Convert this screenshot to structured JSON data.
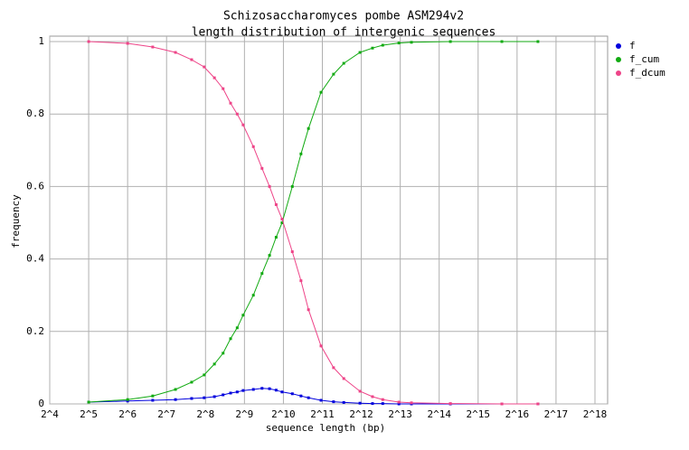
{
  "chart_data": {
    "type": "line",
    "title": "Schizosaccharomyces pombe ASM294v2",
    "subtitle": "length distribution of intergenic sequences",
    "x_label": "sequence length (bp)",
    "y_label": "frequency",
    "x_log_base": 2,
    "xlim": [
      16,
      262144
    ],
    "xticks": [
      {
        "value": 16,
        "label": "2^4"
      },
      {
        "value": 32,
        "label": "2^5"
      },
      {
        "value": 64,
        "label": "2^6"
      },
      {
        "value": 128,
        "label": "2^7"
      },
      {
        "value": 256,
        "label": "2^8"
      },
      {
        "value": 512,
        "label": "2^9"
      },
      {
        "value": 1024,
        "label": "2^10"
      },
      {
        "value": 2048,
        "label": "2^11"
      },
      {
        "value": 4096,
        "label": "2^12"
      },
      {
        "value": 8192,
        "label": "2^13"
      },
      {
        "value": 16384,
        "label": "2^14"
      },
      {
        "value": 32768,
        "label": "2^15"
      },
      {
        "value": 65536,
        "label": "2^16"
      },
      {
        "value": 131072,
        "label": "2^17"
      },
      {
        "value": 262144,
        "label": "2^18"
      }
    ],
    "ylim": [
      0,
      1
    ],
    "yticks": [
      0,
      0.2,
      0.4,
      0.6,
      0.8,
      1
    ],
    "grid": true,
    "legend": "right",
    "x": [
      32,
      64,
      100,
      150,
      200,
      250,
      300,
      350,
      400,
      450,
      500,
      600,
      700,
      800,
      900,
      1000,
      1200,
      1400,
      1600,
      2000,
      2500,
      3000,
      4000,
      5000,
      6000,
      8000,
      10000,
      20000,
      50000,
      95000
    ],
    "series": [
      {
        "name": "f",
        "color": "#0000dd",
        "values": [
          0.005,
          0.008,
          0.01,
          0.012,
          0.015,
          0.017,
          0.02,
          0.025,
          0.03,
          0.033,
          0.037,
          0.04,
          0.043,
          0.042,
          0.038,
          0.033,
          0.028,
          0.022,
          0.017,
          0.01,
          0.006,
          0.004,
          0.002,
          0.001,
          0.001,
          0,
          0,
          0,
          0,
          0
        ]
      },
      {
        "name": "f_cum",
        "color": "#11aa11",
        "values": [
          0.005,
          0.012,
          0.022,
          0.04,
          0.06,
          0.08,
          0.11,
          0.14,
          0.18,
          0.21,
          0.245,
          0.3,
          0.36,
          0.41,
          0.46,
          0.5,
          0.6,
          0.69,
          0.76,
          0.86,
          0.91,
          0.94,
          0.97,
          0.982,
          0.99,
          0.996,
          0.998,
          1,
          1,
          1
        ]
      },
      {
        "name": "f_dcum",
        "color": "#ee4488",
        "values": [
          1,
          0.995,
          0.985,
          0.97,
          0.95,
          0.93,
          0.9,
          0.87,
          0.83,
          0.8,
          0.77,
          0.71,
          0.65,
          0.6,
          0.55,
          0.51,
          0.42,
          0.34,
          0.26,
          0.16,
          0.1,
          0.07,
          0.035,
          0.02,
          0.012,
          0.005,
          0.003,
          0.001,
          0,
          0
        ]
      }
    ]
  }
}
